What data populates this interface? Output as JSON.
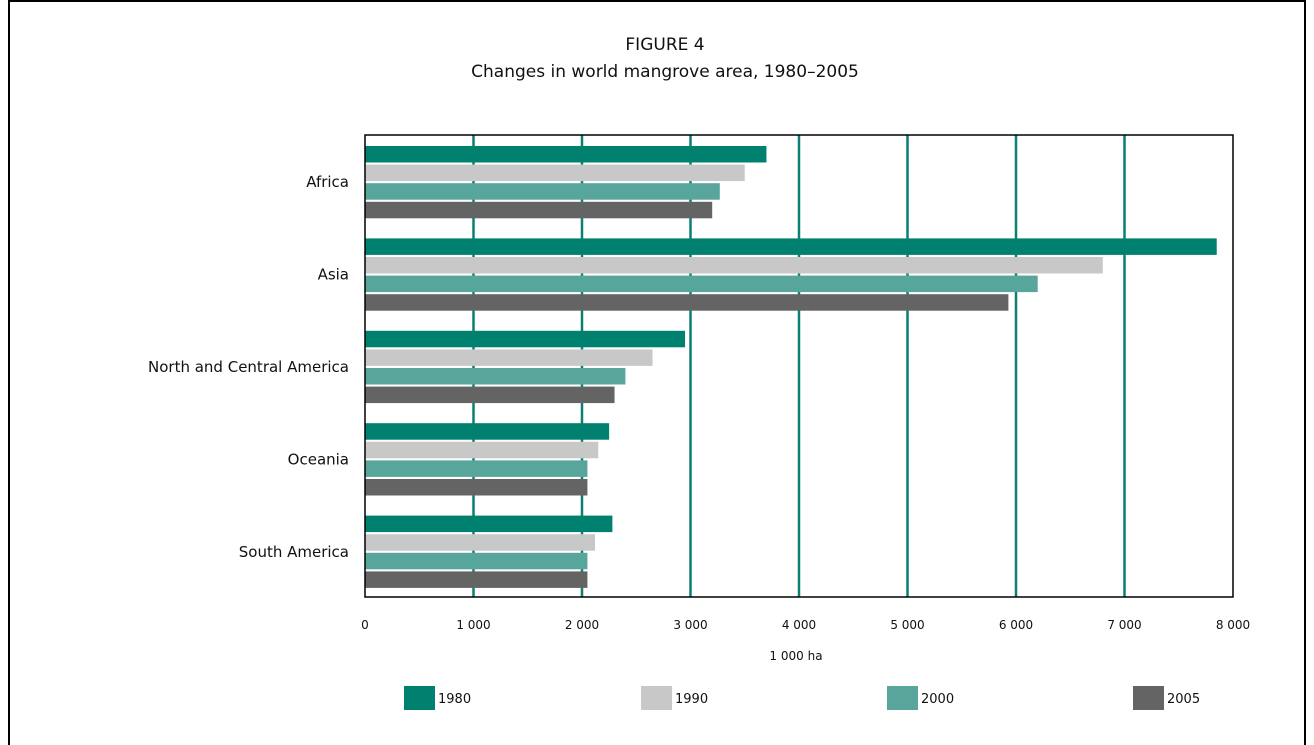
{
  "chart_data": {
    "type": "bar",
    "orientation": "horizontal",
    "figure_label": "FIGURE 4",
    "title": "Changes in world mangrove area, 1980–2005",
    "xlabel": "1 000 ha",
    "xlim": [
      0,
      8000
    ],
    "x_ticks": [
      0,
      1000,
      2000,
      3000,
      4000,
      5000,
      6000,
      7000,
      8000
    ],
    "x_tick_labels": [
      "0",
      "1 000",
      "2 000",
      "3 000",
      "4 000",
      "5 000",
      "6 000",
      "7 000",
      "8 000"
    ],
    "grid": "vertical",
    "legend_position": "bottom",
    "categories": [
      "Africa",
      "Asia",
      "North and Central America",
      "Oceania",
      "South America"
    ],
    "series": [
      {
        "name": "1980",
        "color": "#00806e",
        "values": [
          3700,
          7850,
          2950,
          2250,
          2280
        ]
      },
      {
        "name": "1990",
        "color": "#c8c8c8",
        "values": [
          3500,
          6800,
          2650,
          2150,
          2120
        ]
      },
      {
        "name": "2000",
        "color": "#58a59b",
        "values": [
          3270,
          6200,
          2400,
          2050,
          2050
        ]
      },
      {
        "name": "2005",
        "color": "#646464",
        "values": [
          3200,
          5930,
          2300,
          2050,
          2050
        ]
      }
    ],
    "grid_color": "#0a8072"
  }
}
